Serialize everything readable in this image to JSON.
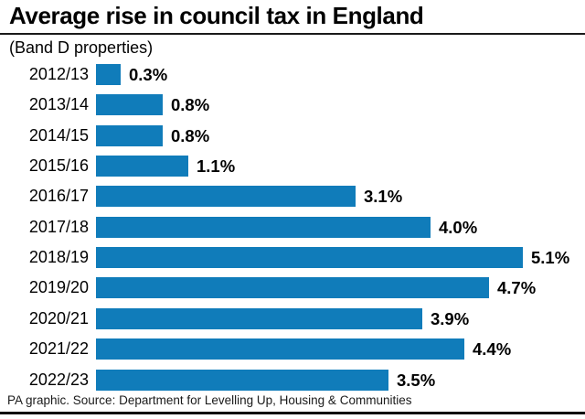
{
  "chart_data": {
    "type": "bar",
    "orientation": "horizontal",
    "title": "Average rise in council tax in England",
    "subtitle": "(Band D properties)",
    "source": "PA graphic. Source: Department for Levelling Up, Housing & Communities",
    "categories": [
      "2012/13",
      "2013/14",
      "2014/15",
      "2015/16",
      "2016/17",
      "2017/18",
      "2018/19",
      "2019/20",
      "2020/21",
      "2021/22",
      "2022/23"
    ],
    "values": [
      0.3,
      0.8,
      0.8,
      1.1,
      3.1,
      4.0,
      5.1,
      4.7,
      3.9,
      4.4,
      3.5
    ],
    "value_labels": [
      "0.3%",
      "0.8%",
      "0.8%",
      "1.1%",
      "3.1%",
      "4.0%",
      "5.1%",
      "4.7%",
      "3.9%",
      "4.4%",
      "3.5%"
    ],
    "xlabel": "",
    "ylabel": "",
    "xlim": [
      0,
      5.8
    ],
    "grid": "off",
    "legend": "none",
    "bar_color": "#107cba",
    "text_color": "#000000",
    "rule_color": "#1a1a1a"
  }
}
